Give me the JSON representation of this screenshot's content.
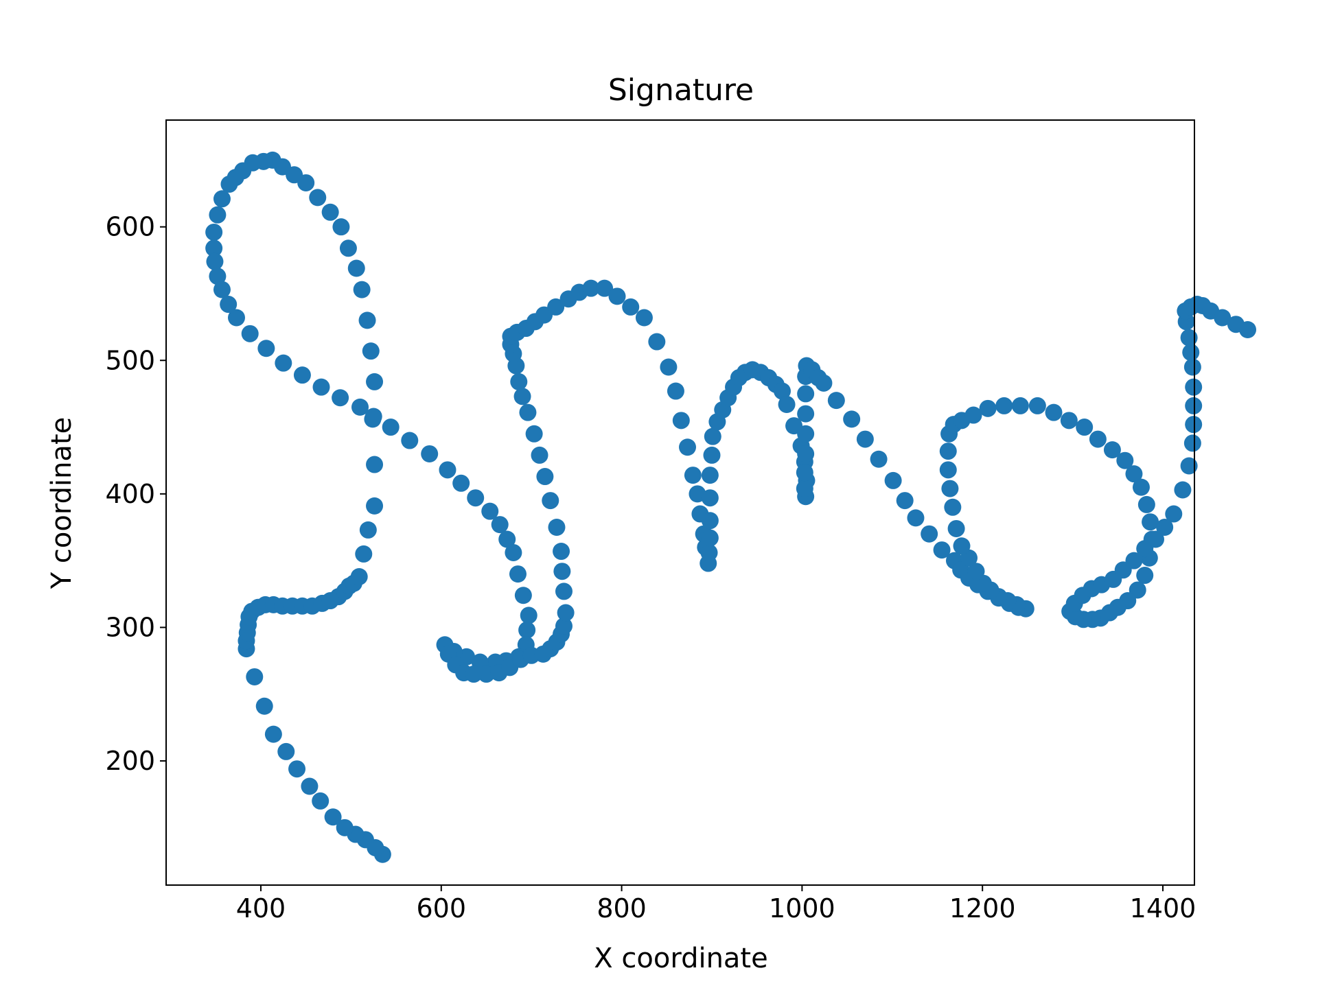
{
  "chart_data": {
    "type": "scatter",
    "title": "Signature",
    "xlabel": "X coordinate",
    "ylabel": "Y coordinate",
    "xlim": [
      295,
      1435
    ],
    "ylim": [
      107,
      680
    ],
    "xticks": [
      400,
      600,
      800,
      1000,
      1200,
      1400
    ],
    "yticks": [
      200,
      300,
      400,
      500,
      600
    ],
    "grid": false,
    "legend": "none",
    "marker_color": "#1f77b4",
    "series": [
      {
        "points": [
          [
            535,
            130
          ],
          [
            527,
            135
          ],
          [
            516,
            141
          ],
          [
            505,
            145
          ],
          [
            493,
            150
          ],
          [
            480,
            158
          ],
          [
            466,
            170
          ],
          [
            454,
            181
          ],
          [
            440,
            194
          ],
          [
            428,
            207
          ],
          [
            414,
            220
          ],
          [
            404,
            241
          ],
          [
            393,
            263
          ],
          [
            384,
            284
          ],
          [
            384,
            290
          ],
          [
            385,
            296
          ],
          [
            386,
            302
          ],
          [
            387,
            308
          ],
          [
            390,
            312
          ],
          [
            397,
            315
          ],
          [
            405,
            317
          ],
          [
            414,
            317
          ],
          [
            424,
            316
          ],
          [
            435,
            316
          ],
          [
            446,
            316
          ],
          [
            457,
            316
          ],
          [
            468,
            318
          ],
          [
            477,
            320
          ],
          [
            486,
            323
          ],
          [
            493,
            327
          ],
          [
            498,
            331
          ],
          [
            503,
            333
          ],
          [
            509,
            338
          ],
          [
            514,
            355
          ],
          [
            519,
            373
          ],
          [
            526,
            391
          ],
          [
            526,
            422
          ],
          [
            524,
            456
          ],
          [
            526,
            484
          ],
          [
            522,
            507
          ],
          [
            518,
            530
          ],
          [
            512,
            553
          ],
          [
            506,
            569
          ],
          [
            497,
            584
          ],
          [
            489,
            600
          ],
          [
            477,
            611
          ],
          [
            463,
            622
          ],
          [
            450,
            633
          ],
          [
            437,
            639
          ],
          [
            424,
            645
          ],
          [
            413,
            650
          ],
          [
            403,
            649
          ],
          [
            391,
            648
          ],
          [
            380,
            642
          ],
          [
            372,
            637
          ],
          [
            365,
            632
          ],
          [
            357,
            621
          ],
          [
            352,
            609
          ],
          [
            348,
            596
          ],
          [
            348,
            584
          ],
          [
            349,
            574
          ],
          [
            352,
            563
          ],
          [
            357,
            553
          ],
          [
            364,
            542
          ],
          [
            373,
            532
          ],
          [
            388,
            520
          ],
          [
            406,
            509
          ],
          [
            425,
            498
          ],
          [
            446,
            489
          ],
          [
            467,
            480
          ],
          [
            488,
            472
          ],
          [
            510,
            465
          ],
          [
            525,
            458
          ],
          [
            544,
            450
          ],
          [
            565,
            440
          ],
          [
            587,
            430
          ],
          [
            607,
            418
          ],
          [
            622,
            408
          ],
          [
            638,
            397
          ],
          [
            654,
            387
          ],
          [
            665,
            377
          ],
          [
            673,
            366
          ],
          [
            680,
            356
          ],
          [
            685,
            340
          ],
          [
            691,
            324
          ],
          [
            697,
            309
          ],
          [
            695,
            298
          ],
          [
            694,
            287
          ],
          [
            686,
            278
          ],
          [
            672,
            275
          ],
          [
            660,
            274
          ],
          [
            643,
            274
          ],
          [
            628,
            278
          ],
          [
            614,
            282
          ],
          [
            604,
            287
          ],
          [
            608,
            280
          ],
          [
            616,
            272
          ],
          [
            625,
            266
          ],
          [
            636,
            265
          ],
          [
            650,
            265
          ],
          [
            664,
            266
          ],
          [
            676,
            270
          ],
          [
            688,
            276
          ],
          [
            700,
            279
          ],
          [
            713,
            280
          ],
          [
            721,
            284
          ],
          [
            728,
            289
          ],
          [
            733,
            295
          ],
          [
            736,
            301
          ],
          [
            738,
            311
          ],
          [
            736,
            327
          ],
          [
            734,
            342
          ],
          [
            733,
            357
          ],
          [
            728,
            375
          ],
          [
            721,
            395
          ],
          [
            715,
            413
          ],
          [
            709,
            429
          ],
          [
            703,
            445
          ],
          [
            696,
            461
          ],
          [
            690,
            473
          ],
          [
            686,
            484
          ],
          [
            683,
            496
          ],
          [
            680,
            505
          ],
          [
            677,
            512
          ],
          [
            677,
            518
          ],
          [
            684,
            521
          ],
          [
            694,
            524
          ],
          [
            704,
            529
          ],
          [
            714,
            534
          ],
          [
            727,
            540
          ],
          [
            741,
            546
          ],
          [
            753,
            551
          ],
          [
            766,
            554
          ],
          [
            781,
            554
          ],
          [
            795,
            548
          ],
          [
            810,
            540
          ],
          [
            825,
            532
          ],
          [
            839,
            514
          ],
          [
            852,
            495
          ],
          [
            860,
            477
          ],
          [
            866,
            455
          ],
          [
            873,
            435
          ],
          [
            879,
            414
          ],
          [
            884,
            400
          ],
          [
            887,
            385
          ],
          [
            891,
            370
          ],
          [
            893,
            360
          ],
          [
            896,
            348
          ],
          [
            897,
            356
          ],
          [
            898,
            367
          ],
          [
            898,
            380
          ],
          [
            898,
            397
          ],
          [
            898,
            414
          ],
          [
            900,
            429
          ],
          [
            901,
            443
          ],
          [
            906,
            454
          ],
          [
            912,
            463
          ],
          [
            918,
            472
          ],
          [
            924,
            480
          ],
          [
            930,
            487
          ],
          [
            937,
            491
          ],
          [
            945,
            493
          ],
          [
            954,
            491
          ],
          [
            963,
            487
          ],
          [
            971,
            482
          ],
          [
            978,
            477
          ],
          [
            983,
            467
          ],
          [
            991,
            451
          ],
          [
            999,
            436
          ],
          [
            1003,
            424
          ],
          [
            1005,
            410
          ],
          [
            1004,
            398
          ],
          [
            1003,
            404
          ],
          [
            1003,
            416
          ],
          [
            1004,
            430
          ],
          [
            1004,
            445
          ],
          [
            1004,
            460
          ],
          [
            1004,
            475
          ],
          [
            1004,
            488
          ],
          [
            1005,
            496
          ],
          [
            1011,
            493
          ],
          [
            1018,
            487
          ],
          [
            1024,
            483
          ],
          [
            1038,
            470
          ],
          [
            1055,
            456
          ],
          [
            1070,
            441
          ],
          [
            1085,
            426
          ],
          [
            1101,
            410
          ],
          [
            1114,
            395
          ],
          [
            1126,
            382
          ],
          [
            1141,
            370
          ],
          [
            1155,
            358
          ],
          [
            1169,
            350
          ],
          [
            1176,
            343
          ],
          [
            1185,
            337
          ],
          [
            1195,
            332
          ],
          [
            1206,
            327
          ],
          [
            1218,
            322
          ],
          [
            1230,
            318
          ],
          [
            1240,
            315
          ],
          [
            1248,
            314
          ],
          [
            1238,
            317
          ],
          [
            1228,
            320
          ],
          [
            1218,
            323
          ],
          [
            1209,
            328
          ],
          [
            1201,
            333
          ],
          [
            1193,
            342
          ],
          [
            1185,
            352
          ],
          [
            1177,
            361
          ],
          [
            1171,
            374
          ],
          [
            1167,
            390
          ],
          [
            1164,
            404
          ],
          [
            1162,
            418
          ],
          [
            1162,
            432
          ],
          [
            1163,
            445
          ],
          [
            1168,
            452
          ],
          [
            1177,
            455
          ],
          [
            1190,
            459
          ],
          [
            1206,
            464
          ],
          [
            1224,
            466
          ],
          [
            1242,
            466
          ],
          [
            1261,
            466
          ],
          [
            1279,
            461
          ],
          [
            1296,
            455
          ],
          [
            1313,
            450
          ],
          [
            1328,
            441
          ],
          [
            1344,
            433
          ],
          [
            1358,
            425
          ],
          [
            1368,
            415
          ],
          [
            1376,
            405
          ],
          [
            1382,
            392
          ],
          [
            1386,
            379
          ],
          [
            1388,
            366
          ],
          [
            1385,
            352
          ],
          [
            1380,
            339
          ],
          [
            1372,
            328
          ],
          [
            1361,
            320
          ],
          [
            1350,
            315
          ],
          [
            1341,
            311
          ],
          [
            1331,
            307
          ],
          [
            1322,
            306
          ],
          [
            1312,
            306
          ],
          [
            1303,
            308
          ],
          [
            1297,
            312
          ],
          [
            1302,
            318
          ],
          [
            1311,
            324
          ],
          [
            1321,
            329
          ],
          [
            1332,
            332
          ],
          [
            1345,
            336
          ],
          [
            1356,
            343
          ],
          [
            1368,
            350
          ],
          [
            1380,
            359
          ],
          [
            1392,
            366
          ],
          [
            1402,
            375
          ],
          [
            1412,
            385
          ],
          [
            1422,
            403
          ],
          [
            1429,
            421
          ],
          [
            1433,
            438
          ],
          [
            1434,
            452
          ],
          [
            1434,
            466
          ],
          [
            1434,
            480
          ],
          [
            1433,
            495
          ],
          [
            1431,
            506
          ],
          [
            1429,
            517
          ],
          [
            1426,
            529
          ],
          [
            1425,
            537
          ],
          [
            1431,
            540
          ],
          [
            1438,
            542
          ],
          [
            1444,
            541
          ],
          [
            1453,
            537
          ],
          [
            1466,
            532
          ],
          [
            1481,
            527
          ],
          [
            1494,
            523
          ]
        ]
      }
    ]
  }
}
